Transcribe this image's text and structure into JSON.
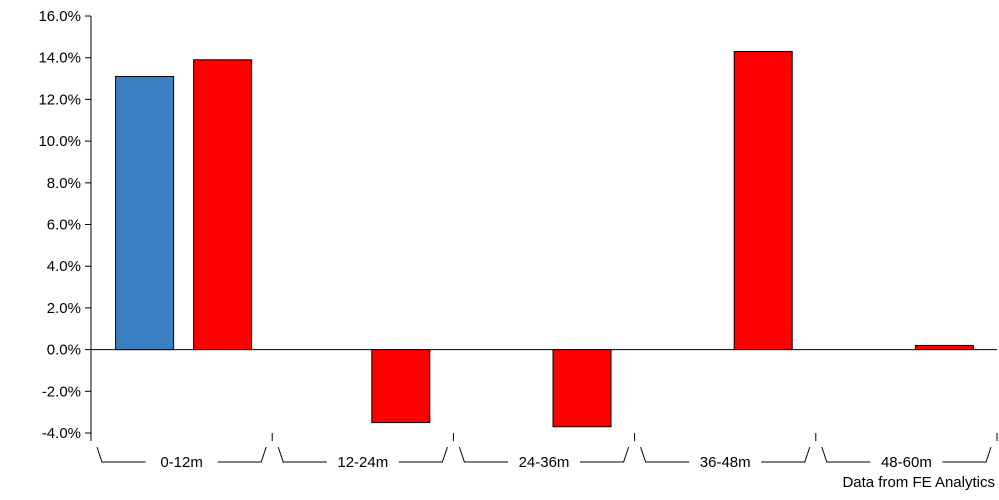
{
  "source_note": "Data from FE Analytics",
  "colors": {
    "series_1": "#3a7fc1",
    "series_2": "#ff0000",
    "axis": "#000000"
  },
  "chart_data": {
    "type": "bar",
    "categories": [
      "0-12m",
      "12-24m",
      "24-36m",
      "36-48m",
      "48-60m"
    ],
    "series": [
      {
        "values": [
          13.1,
          null,
          null,
          null,
          null
        ]
      },
      {
        "values": [
          13.9,
          -3.5,
          -3.7,
          14.3,
          0.2
        ]
      }
    ],
    "y_tick_labels": [
      "16.0%",
      "14.0%",
      "12.0%",
      "10.0%",
      "8.0%",
      "6.0%",
      "4.0%",
      "2.0%",
      "0.0%",
      "-2.0%",
      "-4.0%"
    ],
    "ylim": [
      -4,
      16
    ],
    "y_step": 2,
    "grid": false,
    "legend": "none"
  }
}
